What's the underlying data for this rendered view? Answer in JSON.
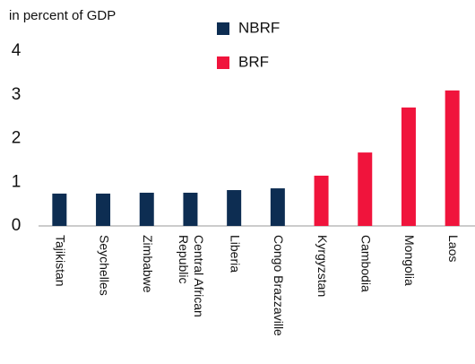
{
  "chart_data": {
    "type": "bar",
    "title": "in percent of GDP",
    "categories": [
      "Tajikistan",
      "Seychelles",
      "Zimbabwe",
      "Central African Republic",
      "Liberia",
      "Congo Brazzaville",
      "Kyrgyzstan",
      "Cambodia",
      "Mongolia",
      "Laos"
    ],
    "series": [
      {
        "name": "NBRF",
        "color": "#0d2d52",
        "values": [
          0.74,
          0.74,
          0.76,
          0.76,
          0.82,
          0.86,
          null,
          null,
          null,
          null
        ]
      },
      {
        "name": "BRF",
        "color": "#f0143c",
        "values": [
          null,
          null,
          null,
          null,
          null,
          null,
          1.15,
          1.68,
          2.71,
          3.1
        ]
      }
    ],
    "ylim": [
      0,
      4
    ],
    "yticks": [
      0,
      1,
      2,
      3,
      4
    ],
    "grid": false
  }
}
